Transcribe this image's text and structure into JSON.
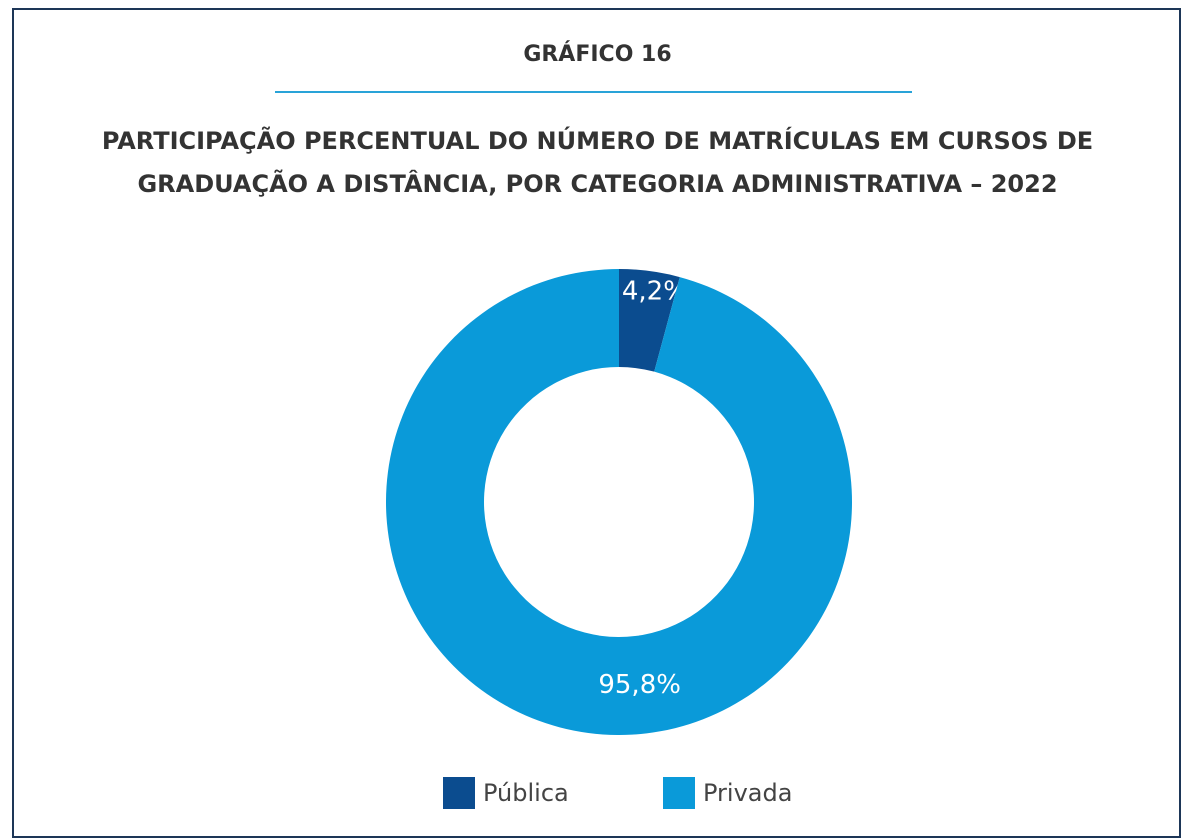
{
  "chart_data": {
    "type": "pie",
    "donut": true,
    "title": "GRÁFICO 16",
    "subtitle": "PARTICIPAÇÃO PERCENTUAL DO NÚMERO DE MATRÍCULAS EM CURSOS DE GRADUAÇÃO A DISTÂNCIA, POR CATEGORIA ADMINISTRATIVA – 2022",
    "categories": [
      "Pública",
      "Privada"
    ],
    "values": [
      4.2,
      95.8
    ],
    "value_labels": [
      "4,2%",
      "95,8%"
    ],
    "colors": [
      "#0b4c8f",
      "#0a9ad9"
    ],
    "legend": "bottom"
  }
}
